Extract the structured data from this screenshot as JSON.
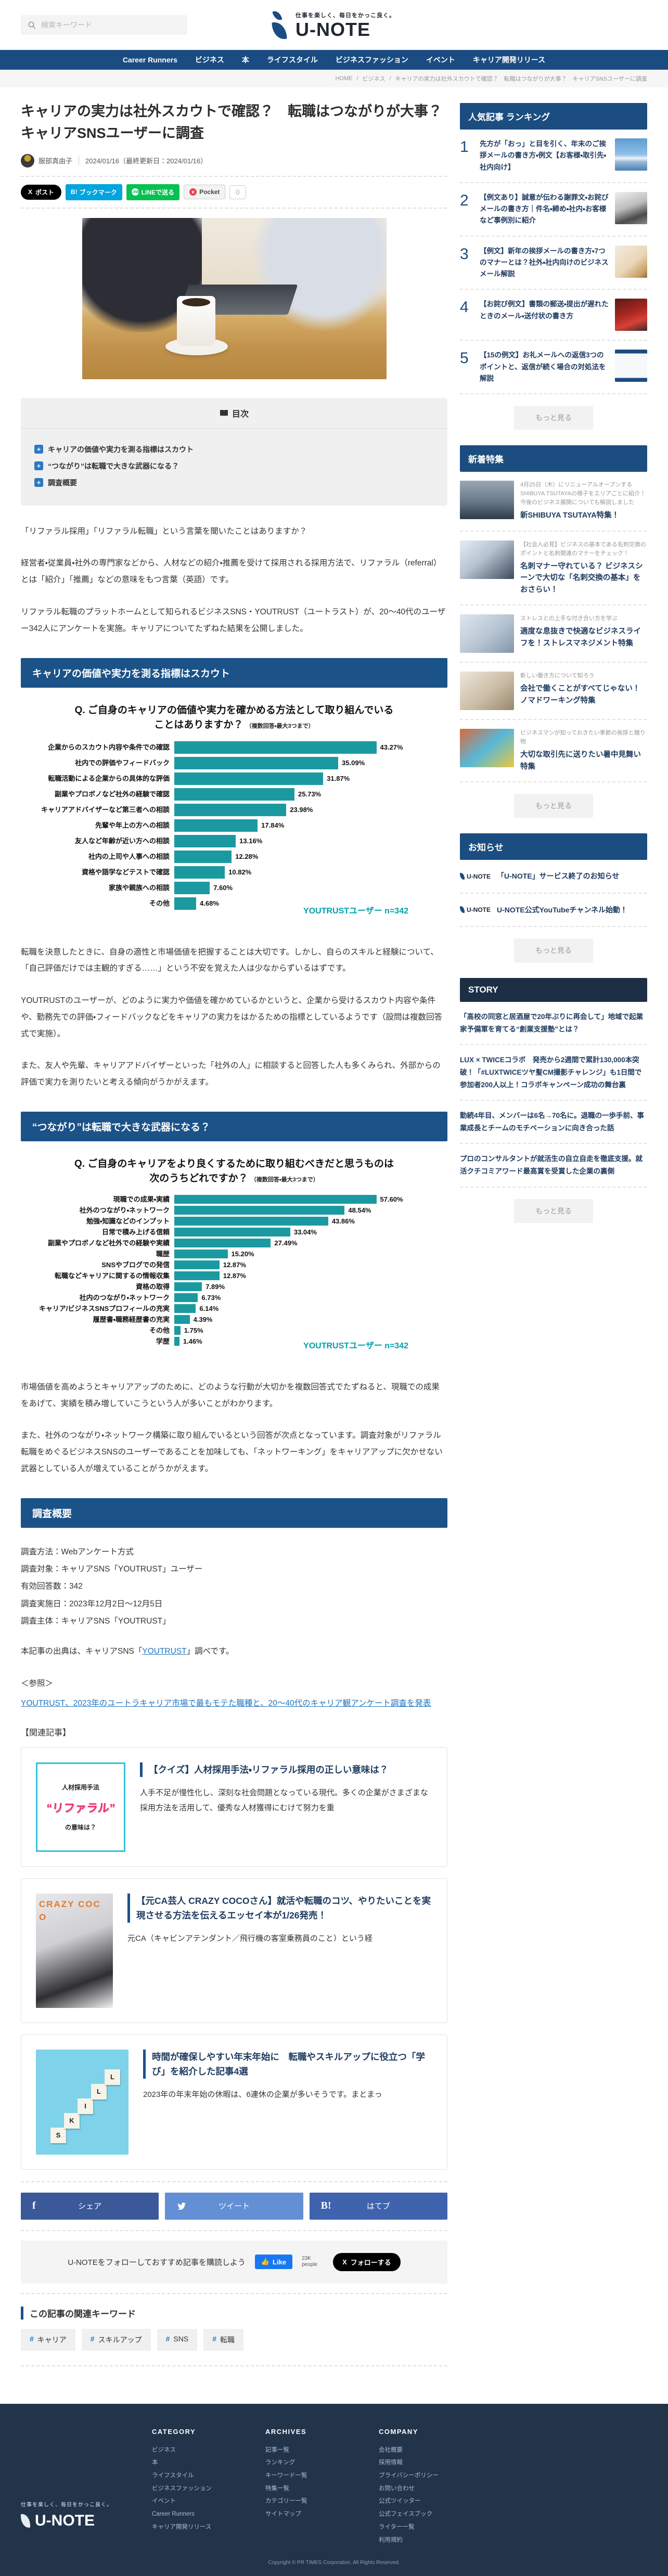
{
  "header": {
    "search_placeholder": "検索キーワード",
    "tagline": "仕事を楽しく、毎日をかっこ良く。",
    "logo_text": "U-NOTE"
  },
  "nav": {
    "items": [
      "Career Runners",
      "ビジネス",
      "本",
      "ライフスタイル",
      "ビジネスファッション",
      "イベント",
      "キャリア開発リリース"
    ]
  },
  "breadcrumb": {
    "items": [
      "HOME",
      "ビジネス",
      "キャリアの実力は社外スカウトで確認？　転職はつながりが大事？　キャリアSNSユーザーに調査"
    ],
    "separator": "/"
  },
  "article": {
    "title": "キャリアの実力は社外スカウトで確認？　転職はつながりが大事？　キャリアSNSユーザーに調査",
    "author": "服部真由子",
    "date": "2024/01/16（最終更新日：2024/01/16）",
    "social": {
      "x_icon": "X",
      "x_label": "ポスト",
      "hatena_icon": "B!",
      "hatena_label": "ブックマーク",
      "line_label": "LINEで送る",
      "pocket_label": "Pocket",
      "count": "0"
    },
    "toc": {
      "title": "目次",
      "items": [
        "キャリアの価値や実力を測る指標はスカウト",
        "“つながり”は転職で大きな武器になる？",
        "調査概要"
      ]
    },
    "intro": [
      "「リファラル採用」「リファラル転職」という言葉を聞いたことはありますか？",
      "経営者・従業員・社外の専門家などから、人材などの紹介・推薦を受けて採用される採用方法で、リファラル（referral）とは「紹介」「推薦」などの意味をもつ言葉（英語）です。",
      "リファラル転職のプラットホームとして知られるビジネスSNS・YOUTRUST（ユートラスト）が、20〜40代のユーザー342人にアンケートを実施。キャリアについてたずねた結果を公開しました。"
    ],
    "section1": {
      "heading": "キャリアの価値や実力を測る指標はスカウト",
      "paragraphs": [
        "転職を決意したときに、自身の適性と市場価値を把握することは大切です。しかし、自らのスキルと経験について、「自己評価だけでは主観的すぎる……」という不安を覚えた人は少なからずいるはずです。",
        "YOUTRUSTのユーザーが、どのように実力や価値を確かめているかというと、企業から受けるスカウト内容や条件や、勤務先での評価・フィードバックなどをキャリアの実力をはかるための指標としているようです（設問は複数回答式で実施）。",
        "また、友人や先輩、キャリアアドバイザーといった「社外の人」に相談すると回答した人も多くみられ、外部からの評価で実力を測りたいと考える傾向がうかがえます。"
      ]
    },
    "section2": {
      "heading": "“つながり”は転職で大きな武器になる？",
      "paragraphs": [
        "市場価値を高めようとキャリアアップのために、どのような行動が大切かを複数回答式でたずねると、現職での成果をあげて、実績を積み増していこうという人が多いことがわかります。",
        "また、社外のつながり・ネットワーク構築に取り組んでいるという回答が次点となっています。調査対象がリファラル転職をめぐるビジネスSNSのユーザーであることを加味しても、「ネットワーキング」をキャリアアップに欠かせない武器としている人が増えていることがうかがえます。"
      ]
    },
    "section3": {
      "heading": "調査概要",
      "lines": [
        "調査方法：Webアンケート方式",
        "調査対象：キャリアSNS「YOUTRUST」ユーザー",
        "有効回答数：342",
        "調査実施日：2023年12月2日〜12月5日",
        "調査主体：キャリアSNS「YOUTRUST」"
      ],
      "source_pre": "本記事の出典は、キャリアSNS「",
      "source_link": "YOUTRUST",
      "source_post": "」調べです。",
      "ref_label": "＜参照＞",
      "ref_link": "YOUTRUST、2023年のユートラキャリア市場で最もモテた職種と、20〜40代のキャリア観アンケート調査を発表"
    },
    "related": {
      "heading": "【関連記事】",
      "cards": [
        {
          "title": "【クイズ】人材採用手法・リファラル採用の正しい意味は？",
          "excerpt": "人手不足が慢性化し、深刻な社会問題となっている現代。多くの企業がさまざまな採用方法を活用して、優秀な人材獲得にむけて努力を重",
          "thumb_line1": "人材採用手法",
          "thumb_line2": "“リファラル”",
          "thumb_line3": "の意味は？"
        },
        {
          "title": "【元CA芸人 CRAZY COCOさん】就活や転職のコツ、やりたいことを実現させる方法を伝えるエッセイ本が1/26発売！",
          "excerpt": "元CA（キャビンアテンダント／飛行機の客室乗務員のこと）という経",
          "thumb_overlay": "CRAZY COCO"
        },
        {
          "title": "時間が確保しやすい年末年始に　転職やスキルアップに役立つ「学び」を紹介した記事4選",
          "excerpt": "2023年の年末年始の休暇は、6連休の企業が多いそうです。まとまっ",
          "thumb_letters": [
            "S",
            "K",
            "I",
            "L",
            "L"
          ]
        }
      ]
    },
    "share": {
      "facebook": "シェア",
      "twitter": "ツイート",
      "hatena": "はてブ",
      "fb_icon": "f",
      "hb_icon": "B!"
    },
    "follow": {
      "text": "U-NOTEをフォローしておすすめ記事を購読しよう",
      "like_label": "Like",
      "like_count": "23K people",
      "x_icon": "X",
      "x_label": "フォローする"
    },
    "keywords": {
      "heading": "この記事の関連キーワード",
      "hash": "#",
      "tags": [
        "キャリア",
        "スキルアップ",
        "SNS",
        "転職"
      ]
    }
  },
  "chart_data": [
    {
      "type": "bar",
      "orientation": "horizontal",
      "title": "Q. ご自身のキャリアの価値や実力を確かめる方法として取り組んでいることはありますか？",
      "note": "（複数回答・最大3つまで）",
      "categories": [
        "企業からのスカウト内容や条件での確認",
        "社内での評価やフィードバック",
        "転職活動による企業からの具体的な評価",
        "副業やプロボノなど社外の経験で確認",
        "キャリアアドバイザーなど第三者への相談",
        "先輩や年上の方への相談",
        "友人など年齢が近い方への相談",
        "社内の上司や人事への相談",
        "資格や語学などテストで確認",
        "家族や親族への相談",
        "その他"
      ],
      "values": [
        43.27,
        35.09,
        31.87,
        25.73,
        23.98,
        17.84,
        13.16,
        12.28,
        10.82,
        7.6,
        4.68
      ],
      "unit": "%",
      "source": "YOUTRUSTユーザー n=342",
      "bar_color": "#1A9AA0",
      "xlim": [
        0,
        50
      ]
    },
    {
      "type": "bar",
      "orientation": "horizontal",
      "title": "Q. ご自身のキャリアをより良くするために取り組むべきだと思うものは次のうちどれですか？",
      "note": "（複数回答・最大3つまで）",
      "categories": [
        "現職での成果・実績",
        "社外のつながり・ネットワーク",
        "勉強・知識などのインプット",
        "日常で積み上げる信頼",
        "副業やプロボノなど社外での経験や実績",
        "職歴",
        "SNSやブログでの発信",
        "転職などキャリアに関するの情報収集",
        "資格の取得",
        "社内のつながり・ネットワーク",
        "キャリア/ビジネスSNSプロフィールの充実",
        "履歴書・職務経歴書の充実",
        "その他",
        "学歴"
      ],
      "values": [
        57.6,
        48.54,
        43.86,
        33.04,
        27.49,
        15.2,
        12.87,
        12.87,
        7.89,
        6.73,
        6.14,
        4.39,
        1.75,
        1.46
      ],
      "unit": "%",
      "source": "YOUTRUSTユーザー n=342",
      "bar_color": "#1A9AA0",
      "xlim": [
        0,
        65
      ]
    }
  ],
  "sidebar": {
    "ranking": {
      "heading": "人気記事 ランキング",
      "items": [
        "先方が「おっ」と目を引く、年末のご挨拶メールの書き方・例文【お客様・取引先・社内向け】",
        "【例文あり】誠意が伝わる謝罪文・お詫びメールの書き方｜件名・締め・社内・お客様など事例別に紹介",
        "【例文】新年の挨拶メールの書き方・7つのマナーとは？社外・社内向けのビジネスメール解説",
        "【お詫び例文】書類の郵送・提出が遅れたときのメール・送付状の書き方",
        "【15の例文】お礼メールへの返信3つのポイントと、返信が続く場合の対処法を解説"
      ],
      "more": "もっと見る"
    },
    "features": {
      "heading": "新着特集",
      "items": [
        {
          "sub": "4月25日（木）にリニューアルオープンするSHIBUYA TSUTAYAの様子をエリアごとに紹介！　今後のビジネス展開についても解説しました",
          "title": "新SHIBUYA TSUTAYA特集！"
        },
        {
          "sub": "【社会人必見】ビジネスの基本である名刺交換のポイントと名刺関連のマナーをチェック！",
          "title": "名刺マナー守れている？ ビジネスシーンで大切な「名刺交換の基本」をおさらい！"
        },
        {
          "sub": "ストレスとの上手な付き合い方を学ぶ",
          "title": "適度な息抜きで快適なビジネスライフを！ストレスマネジメント特集"
        },
        {
          "sub": "新しい働き方について知ろう",
          "title": "会社で働くことがすべてじゃない！ノマドワーキング特集"
        },
        {
          "sub": "ビジネスマンが知っておきたい季節の挨拶と贈り物",
          "title": "大切な取引先に送りたい暑中見舞い特集"
        }
      ],
      "more": "もっと見る"
    },
    "notices": {
      "heading": "お知らせ",
      "logo": "U-NOTE",
      "items": [
        "「U-NOTE」サービス終了のお知らせ",
        "U-NOTE公式YouTubeチャンネル始動！"
      ],
      "more": "もっと見る"
    },
    "story": {
      "heading": "STORY",
      "items": [
        "「高校の同窓と居酒屋で20年ぶりに再会して」地域で起業家予備軍を育てる“創業支援塾”とは？",
        "LUX × TWICEコラボ　発売から2週間で累計130,000本突破！「#LUXTWICEツヤ髪CM撮影チャレンジ」も1日間で参加者200人以上！コラボキャンペーン成功の舞台裏",
        "勤続4年目、メンバーは6名→70名に。退職の一歩手前、事業成長とチームのモチベーションに向き合った話",
        "プロのコンサルタントが就活生の自立自走を徹底支援。就活クチコミアワード最高賞を受賞した企業の裏側"
      ],
      "more": "もっと見る"
    }
  },
  "footer": {
    "tagline": "仕事を楽しく、毎日をかっこ良く。",
    "logo_text": "U-NOTE",
    "columns": [
      {
        "heading": "CATEGORY",
        "items": [
          "ビジネス",
          "本",
          "ライフスタイル",
          "ビジネスファッション",
          "イベント",
          "Career Runners",
          "キャリア開発リリース"
        ]
      },
      {
        "heading": "ARCHIVES",
        "items": [
          "記事一覧",
          "ランキング",
          "キーワード一覧",
          "特集一覧",
          "カテゴリー一覧",
          "サイトマップ"
        ]
      },
      {
        "heading": "COMPANY",
        "items": [
          "会社概要",
          "採用情報",
          "プライバシーポリシー",
          "お問い合わせ",
          "公式ツイッター",
          "公式フェイスブック",
          "ライター一覧",
          "利用規約"
        ]
      }
    ],
    "copyright": "Copyright © PR TIMES Corporation. All Rights Reserved."
  }
}
